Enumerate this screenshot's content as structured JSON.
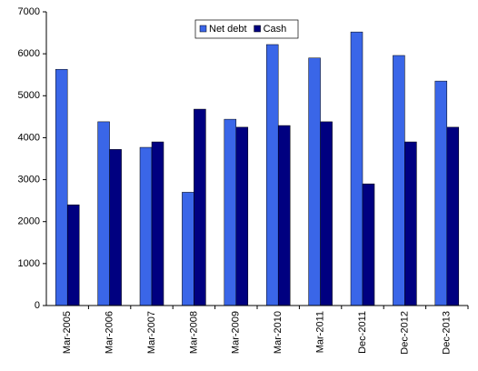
{
  "chart_data": {
    "type": "bar",
    "categories": [
      "Mar-2005",
      "Mar-2006",
      "Mar-2007",
      "Mar-2008",
      "Mar-2009",
      "Mar-2010",
      "Mar-2011",
      "Dec-2011",
      "Dec-2012",
      "Dec-2013"
    ],
    "series": [
      {
        "name": "Net debt",
        "color": "#3a66e8",
        "values": [
          5630,
          4380,
          3770,
          2700,
          4440,
          6220,
          5900,
          6520,
          5960,
          5350
        ]
      },
      {
        "name": "Cash",
        "color": "#000080",
        "values": [
          2400,
          3720,
          3900,
          4680,
          4250,
          4290,
          4380,
          2900,
          3900,
          4250
        ]
      }
    ],
    "ylim": [
      0,
      7000
    ],
    "yticks": [
      0,
      1000,
      2000,
      3000,
      4000,
      5000,
      6000,
      7000
    ],
    "grid": false,
    "legend": "top"
  }
}
